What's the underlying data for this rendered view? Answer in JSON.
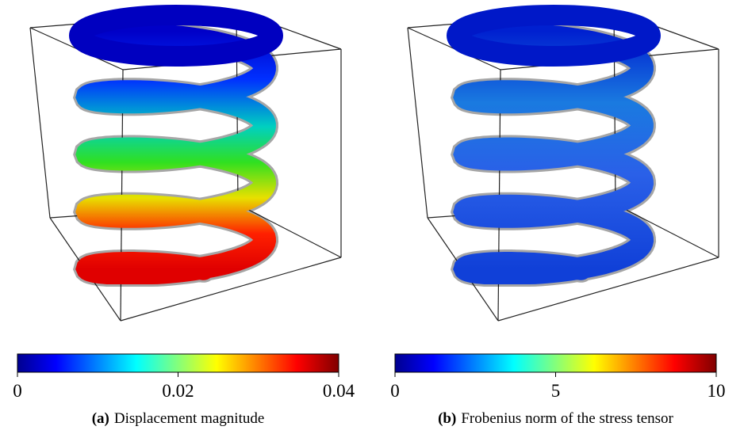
{
  "panels": [
    {
      "label": "(a)",
      "caption": "Displacement magnitude",
      "colormap": "jet",
      "colorbar": {
        "lim": [
          0,
          0.04
        ],
        "ticks": [
          0,
          0.02,
          0.04
        ]
      }
    },
    {
      "label": "(b)",
      "caption": "Frobenius norm of the stress tensor",
      "colormap": "jet",
      "colorbar": {
        "lim": [
          0,
          10
        ],
        "ticks": [
          0,
          5,
          10
        ]
      }
    }
  ]
}
